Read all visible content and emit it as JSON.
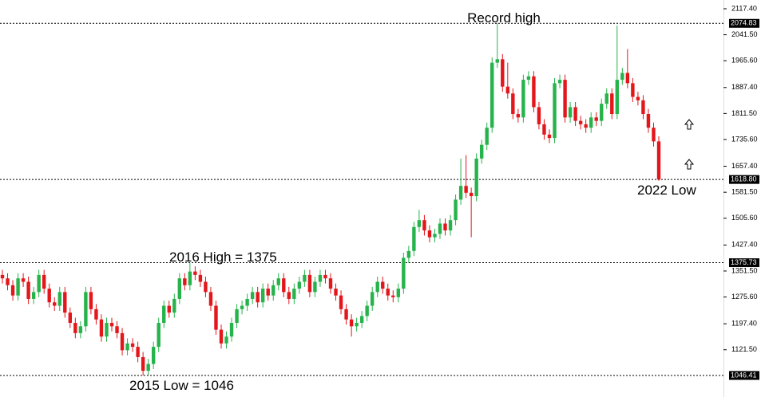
{
  "chart_data": {
    "type": "candlestick",
    "up_color": "#27b34b",
    "down_color": "#e3161b",
    "ylim": [
      983.5,
      2143
    ],
    "yticks": [
      {
        "value": 2117.4,
        "label": "2117.40"
      },
      {
        "value": 2041.5,
        "label": "2041.50"
      },
      {
        "value": 1965.6,
        "label": "1965.60"
      },
      {
        "value": 1887.4,
        "label": "1887.40"
      },
      {
        "value": 1811.5,
        "label": "1811.50"
      },
      {
        "value": 1735.6,
        "label": "1735.60"
      },
      {
        "value": 1657.4,
        "label": "1657.40"
      },
      {
        "value": 1581.5,
        "label": "1581.50"
      },
      {
        "value": 1505.6,
        "label": "1505.60"
      },
      {
        "value": 1427.4,
        "label": "1427.40"
      },
      {
        "value": 1351.5,
        "label": "1351.50"
      },
      {
        "value": 1275.6,
        "label": "1275.60"
      },
      {
        "value": 1197.4,
        "label": "1197.40"
      },
      {
        "value": 1121.5,
        "label": "1121.50"
      }
    ],
    "levels": [
      {
        "value": 2074.83,
        "label": "2074.83"
      },
      {
        "value": 1618.8,
        "label": "1618.80"
      },
      {
        "value": 1375.73,
        "label": "1375.73"
      },
      {
        "value": 1046.41,
        "label": "1046.41"
      }
    ],
    "annotations": [
      "Record high",
      "2016 High = 1375",
      "2015 Low = 1046",
      "2022 Low"
    ],
    "open": [
      1340,
      1330,
      1310,
      1280,
      1330,
      1320,
      1270,
      1290,
      1340,
      1300,
      1260,
      1250,
      1290,
      1230,
      1200,
      1170,
      1190,
      1290,
      1240,
      1210,
      1160,
      1200,
      1190,
      1170,
      1120,
      1140,
      1130,
      1100,
      1060,
      1080,
      1130,
      1200,
      1250,
      1230,
      1270,
      1330,
      1310,
      1350,
      1340,
      1320,
      1290,
      1250,
      1180,
      1140,
      1160,
      1200,
      1240,
      1250,
      1270,
      1290,
      1260,
      1300,
      1280,
      1310,
      1330,
      1290,
      1270,
      1300,
      1320,
      1340,
      1290,
      1320,
      1340,
      1330,
      1300,
      1280,
      1240,
      1210,
      1190,
      1200,
      1220,
      1250,
      1290,
      1320,
      1300,
      1280,
      1275,
      1300,
      1390,
      1410,
      1480,
      1500,
      1470,
      1450,
      1460,
      1490,
      1470,
      1500,
      1560,
      1600,
      1580,
      1570,
      1680,
      1720,
      1770,
      1960,
      1970,
      1890,
      1870,
      1810,
      1800,
      1910,
      1920,
      1830,
      1780,
      1750,
      1740,
      1900,
      1910,
      1800,
      1830,
      1790,
      1780,
      1770,
      1800,
      1790,
      1840,
      1870,
      1810,
      1910,
      1930,
      1900,
      1860,
      1850,
      1810,
      1770,
      1730
    ],
    "high": [
      1355,
      1345,
      1325,
      1345,
      1345,
      1335,
      1305,
      1355,
      1355,
      1315,
      1275,
      1305,
      1305,
      1245,
      1215,
      1205,
      1305,
      1305,
      1255,
      1225,
      1215,
      1215,
      1205,
      1185,
      1155,
      1155,
      1145,
      1115,
      1095,
      1145,
      1215,
      1265,
      1265,
      1285,
      1345,
      1345,
      1375,
      1365,
      1355,
      1335,
      1305,
      1265,
      1195,
      1175,
      1215,
      1255,
      1265,
      1285,
      1305,
      1305,
      1315,
      1315,
      1325,
      1345,
      1345,
      1305,
      1315,
      1335,
      1355,
      1355,
      1335,
      1355,
      1355,
      1345,
      1315,
      1295,
      1255,
      1225,
      1215,
      1235,
      1265,
      1305,
      1335,
      1335,
      1315,
      1295,
      1315,
      1405,
      1425,
      1495,
      1530,
      1515,
      1485,
      1475,
      1505,
      1505,
      1515,
      1575,
      1680,
      1690,
      1595,
      1695,
      1735,
      1785,
      1975,
      2075,
      1985,
      1960,
      1885,
      1825,
      1925,
      1935,
      1935,
      1845,
      1795,
      1765,
      1915,
      1925,
      1925,
      1845,
      1845,
      1805,
      1795,
      1815,
      1815,
      1855,
      1885,
      1885,
      2068,
      1945,
      2000,
      1915,
      1875,
      1865,
      1825,
      1785,
      1745
    ],
    "low": [
      1315,
      1295,
      1265,
      1265,
      1305,
      1255,
      1255,
      1275,
      1285,
      1245,
      1235,
      1235,
      1215,
      1185,
      1155,
      1155,
      1175,
      1225,
      1195,
      1145,
      1145,
      1175,
      1155,
      1105,
      1105,
      1115,
      1085,
      1046,
      1048,
      1065,
      1115,
      1185,
      1215,
      1215,
      1255,
      1295,
      1295,
      1325,
      1305,
      1275,
      1235,
      1165,
      1125,
      1125,
      1145,
      1185,
      1225,
      1235,
      1255,
      1245,
      1245,
      1265,
      1265,
      1295,
      1275,
      1255,
      1255,
      1285,
      1305,
      1275,
      1275,
      1305,
      1315,
      1285,
      1265,
      1225,
      1195,
      1160,
      1175,
      1185,
      1205,
      1235,
      1275,
      1285,
      1265,
      1260,
      1260,
      1285,
      1375,
      1395,
      1465,
      1455,
      1435,
      1435,
      1445,
      1455,
      1455,
      1485,
      1545,
      1565,
      1450,
      1555,
      1665,
      1705,
      1755,
      1945,
      1875,
      1855,
      1795,
      1785,
      1785,
      1895,
      1815,
      1765,
      1735,
      1725,
      1725,
      1885,
      1785,
      1785,
      1775,
      1765,
      1755,
      1755,
      1775,
      1775,
      1825,
      1795,
      1795,
      1895,
      1885,
      1845,
      1835,
      1795,
      1755,
      1715,
      1615
    ],
    "close": [
      1330,
      1310,
      1280,
      1330,
      1320,
      1270,
      1290,
      1340,
      1300,
      1260,
      1250,
      1290,
      1230,
      1200,
      1170,
      1190,
      1290,
      1240,
      1210,
      1160,
      1200,
      1190,
      1170,
      1120,
      1140,
      1130,
      1100,
      1060,
      1080,
      1130,
      1200,
      1250,
      1230,
      1270,
      1330,
      1310,
      1350,
      1340,
      1320,
      1290,
      1250,
      1180,
      1140,
      1160,
      1200,
      1240,
      1250,
      1270,
      1290,
      1260,
      1300,
      1280,
      1310,
      1330,
      1290,
      1270,
      1300,
      1320,
      1340,
      1290,
      1320,
      1340,
      1330,
      1300,
      1280,
      1240,
      1210,
      1190,
      1200,
      1220,
      1250,
      1290,
      1320,
      1300,
      1280,
      1275,
      1300,
      1390,
      1410,
      1480,
      1500,
      1470,
      1450,
      1460,
      1490,
      1470,
      1500,
      1560,
      1600,
      1580,
      1570,
      1680,
      1720,
      1770,
      1960,
      1970,
      1890,
      1870,
      1810,
      1800,
      1910,
      1920,
      1830,
      1780,
      1750,
      1740,
      1900,
      1910,
      1800,
      1830,
      1790,
      1780,
      1770,
      1800,
      1790,
      1840,
      1870,
      1810,
      1910,
      1930,
      1900,
      1860,
      1850,
      1810,
      1770,
      1730,
      1618.8
    ]
  }
}
